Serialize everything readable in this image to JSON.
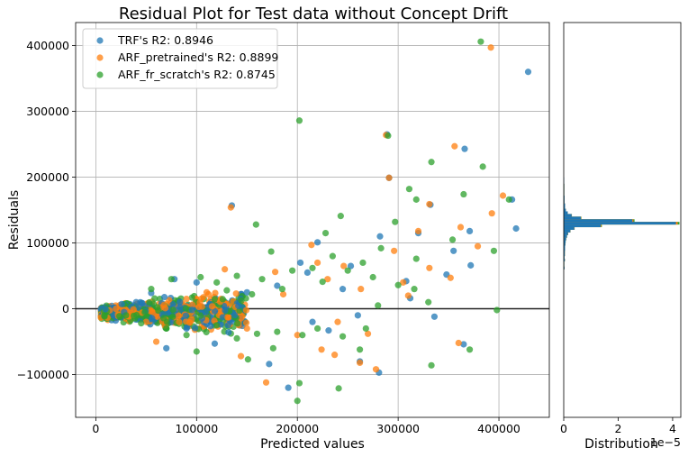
{
  "chart_data": {
    "type": "scatter",
    "title": "Residual Plot for Test data without Concept Drift",
    "xlabel": "Predicted values",
    "ylabel": "Residuals",
    "xlim": [
      -20000,
      450000
    ],
    "ylim": [
      -165000,
      435000
    ],
    "xticks": [
      0,
      100000,
      200000,
      300000,
      400000
    ],
    "yticks": [
      -100000,
      0,
      100000,
      200000,
      300000,
      400000
    ],
    "grid": true,
    "legend_position": "top-left",
    "zero_line": 0,
    "series": [
      {
        "name": "TRF's R2: 0.8946",
        "color": "#1f77b4",
        "points": [
          [
            429000,
            360000
          ],
          [
            413000,
            166000
          ],
          [
            366000,
            243000
          ],
          [
            289000,
            265000
          ],
          [
            291000,
            199000
          ],
          [
            371000,
            118000
          ],
          [
            417000,
            122000
          ],
          [
            220000,
            101000
          ],
          [
            332000,
            158000
          ],
          [
            348000,
            52000
          ],
          [
            135000,
            157000
          ],
          [
            365000,
            -54000
          ],
          [
            336000,
            -12000
          ],
          [
            281000,
            -97000
          ],
          [
            191000,
            -120000
          ],
          [
            172000,
            -84000
          ],
          [
            231000,
            -33000
          ],
          [
            262000,
            -80000
          ],
          [
            118000,
            -53000
          ],
          [
            70000,
            -60000
          ],
          [
            55000,
            24000
          ],
          [
            78000,
            45000
          ],
          [
            100000,
            40000
          ],
          [
            150000,
            25000
          ],
          [
            203000,
            70000
          ],
          [
            253000,
            65000
          ],
          [
            372000,
            66000
          ],
          [
            308000,
            42000
          ],
          [
            245000,
            30000
          ],
          [
            180000,
            35000
          ],
          [
            260000,
            -10000
          ],
          [
            215000,
            -20000
          ],
          [
            312000,
            16000
          ],
          [
            28000,
            -5000
          ],
          [
            40000,
            10000
          ],
          [
            90000,
            -30000
          ],
          [
            320000,
            115000
          ],
          [
            282000,
            110000
          ],
          [
            355000,
            88000
          ],
          [
            210000,
            55000
          ]
        ]
      },
      {
        "name": "ARF_pretrained's R2: 0.8899",
        "color": "#ff7f0e",
        "points": [
          [
            392000,
            397000
          ],
          [
            288000,
            264000
          ],
          [
            356000,
            247000
          ],
          [
            291000,
            199000
          ],
          [
            404000,
            172000
          ],
          [
            331000,
            159000
          ],
          [
            362000,
            124000
          ],
          [
            393000,
            145000
          ],
          [
            134000,
            154000
          ],
          [
            214000,
            97000
          ],
          [
            320000,
            118000
          ],
          [
            352000,
            47000
          ],
          [
            379000,
            95000
          ],
          [
            169000,
            -112000
          ],
          [
            237000,
            -70000
          ],
          [
            262000,
            -82000
          ],
          [
            278000,
            -92000
          ],
          [
            224000,
            -62000
          ],
          [
            144000,
            -72000
          ],
          [
            60000,
            -50000
          ],
          [
            220000,
            70000
          ],
          [
            246000,
            65000
          ],
          [
            178000,
            56000
          ],
          [
            128000,
            60000
          ],
          [
            296000,
            88000
          ],
          [
            331000,
            62000
          ],
          [
            263000,
            30000
          ],
          [
            305000,
            40000
          ],
          [
            186000,
            22000
          ],
          [
            90000,
            15000
          ],
          [
            240000,
            -20000
          ],
          [
            200000,
            -40000
          ],
          [
            270000,
            -38000
          ],
          [
            150000,
            -30000
          ],
          [
            110000,
            25000
          ],
          [
            50000,
            -20000
          ],
          [
            20000,
            0
          ],
          [
            360000,
            -52000
          ],
          [
            310000,
            20000
          ],
          [
            230000,
            45000
          ]
        ]
      },
      {
        "name": "ARF_fr_scratch's R2: 0.8745",
        "color": "#2ca02c",
        "points": [
          [
            382000,
            406000
          ],
          [
            202000,
            286000
          ],
          [
            290000,
            263000
          ],
          [
            333000,
            223000
          ],
          [
            384000,
            216000
          ],
          [
            318000,
            166000
          ],
          [
            365000,
            174000
          ],
          [
            410000,
            166000
          ],
          [
            159000,
            128000
          ],
          [
            297000,
            132000
          ],
          [
            243000,
            141000
          ],
          [
            311000,
            182000
          ],
          [
            354000,
            105000
          ],
          [
            395000,
            88000
          ],
          [
            174000,
            87000
          ],
          [
            228000,
            115000
          ],
          [
            333000,
            -86000
          ],
          [
            371000,
            -62000
          ],
          [
            200000,
            -140000
          ],
          [
            202000,
            -113000
          ],
          [
            241000,
            -121000
          ],
          [
            151000,
            -77000
          ],
          [
            176000,
            -60000
          ],
          [
            100000,
            -65000
          ],
          [
            262000,
            -62000
          ],
          [
            318000,
            76000
          ],
          [
            283000,
            92000
          ],
          [
            265000,
            70000
          ],
          [
            235000,
            80000
          ],
          [
            215000,
            62000
          ],
          [
            195000,
            58000
          ],
          [
            165000,
            45000
          ],
          [
            140000,
            50000
          ],
          [
            120000,
            40000
          ],
          [
            104000,
            48000
          ],
          [
            75000,
            45000
          ],
          [
            55000,
            30000
          ],
          [
            300000,
            36000
          ],
          [
            275000,
            48000
          ],
          [
            250000,
            58000
          ],
          [
            225000,
            41000
          ],
          [
            185000,
            30000
          ],
          [
            155000,
            22000
          ],
          [
            130000,
            28000
          ],
          [
            268000,
            -30000
          ],
          [
            245000,
            -42000
          ],
          [
            220000,
            -30000
          ],
          [
            205000,
            -40000
          ],
          [
            180000,
            -35000
          ],
          [
            160000,
            -38000
          ],
          [
            140000,
            -45000
          ],
          [
            120000,
            -25000
          ],
          [
            90000,
            -40000
          ],
          [
            70000,
            -30000
          ],
          [
            45000,
            -22000
          ],
          [
            30000,
            -10000
          ],
          [
            280000,
            5000
          ],
          [
            398000,
            -2000
          ],
          [
            316000,
            30000
          ],
          [
            330000,
            10000
          ]
        ]
      }
    ],
    "dense_cluster": {
      "x_range": [
        5000,
        150000
      ],
      "y_spread": 16000,
      "count": 900,
      "colors": [
        "#1f77b4",
        "#ff7f0e",
        "#2ca02c"
      ]
    },
    "distribution": {
      "type": "histogram",
      "orientation": "horizontal",
      "xlabel": "Distribution",
      "xlim": [
        0,
        4.3e-05
      ],
      "xticks": [
        0,
        2e-05,
        4e-05
      ],
      "xtick_labels": [
        "0",
        "2",
        "4"
      ],
      "offset_text": "1e−5",
      "ylim": [
        -165000,
        435000
      ],
      "bins": [
        {
          "y0": 60000,
          "y1": 64000,
          "value": 3e-07
        },
        {
          "y0": 64000,
          "y1": 68000,
          "value": 2e-07
        },
        {
          "y0": 68000,
          "y1": 72000,
          "value": 2e-07
        },
        {
          "y0": 72000,
          "y1": 76000,
          "value": 4e-07
        },
        {
          "y0": 76000,
          "y1": 80000,
          "value": 3e-07
        },
        {
          "y0": 80000,
          "y1": 84000,
          "value": 4e-07
        },
        {
          "y0": 84000,
          "y1": 88000,
          "value": 4e-07
        },
        {
          "y0": 88000,
          "y1": 92000,
          "value": 5e-07
        },
        {
          "y0": 92000,
          "y1": 96000,
          "value": 5e-07
        },
        {
          "y0": 96000,
          "y1": 100000,
          "value": 6e-07
        },
        {
          "y0": 100000,
          "y1": 104000,
          "value": 7e-07
        },
        {
          "y0": 104000,
          "y1": 108000,
          "value": 9e-07
        },
        {
          "y0": 108000,
          "y1": 112000,
          "value": 1.2e-06
        },
        {
          "y0": 112000,
          "y1": 116000,
          "value": 1.6e-06
        },
        {
          "y0": 116000,
          "y1": 120000,
          "value": 2.5e-06
        },
        {
          "y0": 120000,
          "y1": 124000,
          "value": 4e-06
        },
        {
          "y0": 124000,
          "y1": 128000,
          "value": 1.4e-05
        },
        {
          "y0": 128000,
          "y1": 132000,
          "value": 4.25e-05
        },
        {
          "y0": 132000,
          "y1": 136000,
          "value": 2.6e-05
        },
        {
          "y0": 136000,
          "y1": 140000,
          "value": 6.5e-06
        },
        {
          "y0": 140000,
          "y1": 144000,
          "value": 3e-06
        },
        {
          "y0": 144000,
          "y1": 148000,
          "value": 1.5e-06
        },
        {
          "y0": 148000,
          "y1": 152000,
          "value": 8e-07
        },
        {
          "y0": 152000,
          "y1": 160000,
          "value": 5e-07
        },
        {
          "y0": 160000,
          "y1": 172000,
          "value": 3e-07
        },
        {
          "y0": 172000,
          "y1": 190000,
          "value": 2e-07
        },
        {
          "y0": 190000,
          "y1": 200000,
          "value": 1e-07
        }
      ],
      "colors": [
        "#2ca02c",
        "#ff7f0e",
        "#1f77b4"
      ]
    }
  }
}
